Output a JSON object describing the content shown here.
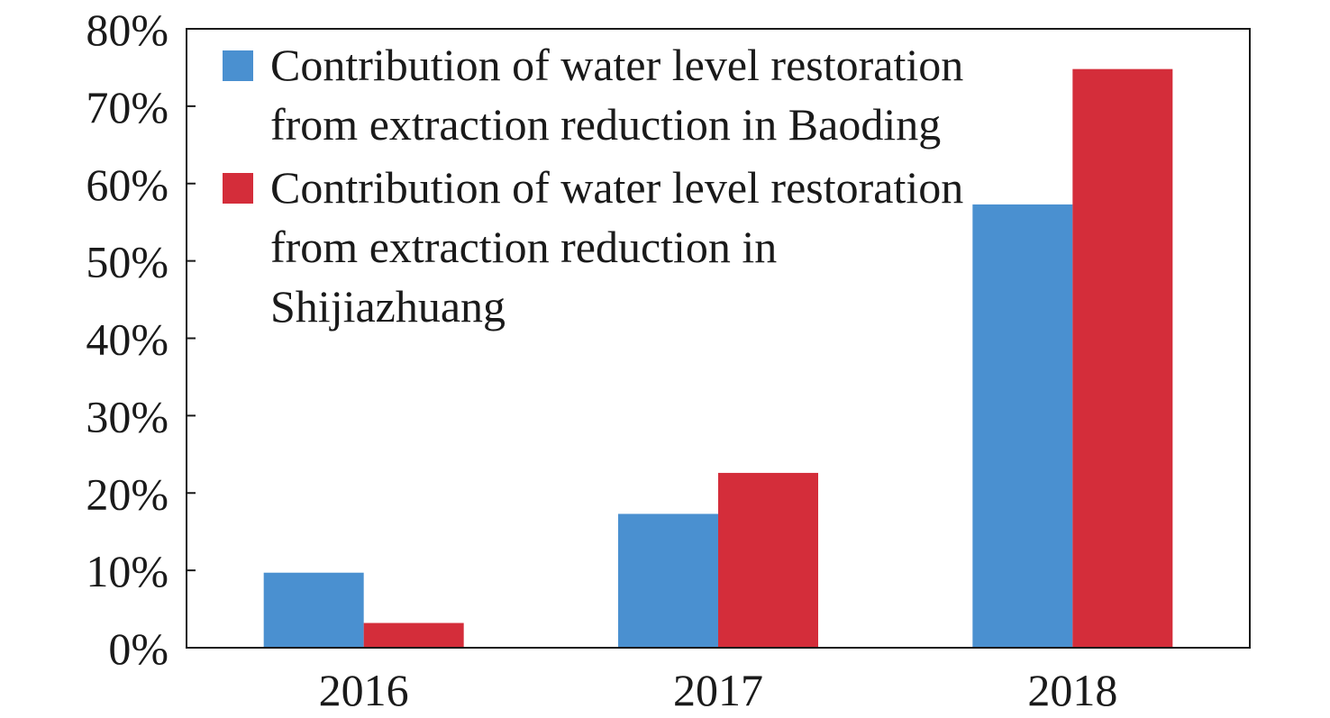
{
  "chart_data": {
    "type": "bar",
    "categories": [
      "2016",
      "2017",
      "2018"
    ],
    "series": [
      {
        "name": "Contribution of water level restoration from extraction reduction in Baoding",
        "legend_lines": [
          "Contribution of water level restoration",
          "from extraction reduction in Baoding"
        ],
        "color": "#4a90d0",
        "values": [
          9.7,
          17.3,
          57.3
        ]
      },
      {
        "name": "Contribution of water level restoration from extraction reduction in Shijiazhuang",
        "legend_lines": [
          "Contribution of water level restoration",
          "from extraction reduction in",
          "Shijiazhuang"
        ],
        "color": "#d42d3a",
        "values": [
          3.2,
          22.6,
          74.8
        ]
      }
    ],
    "ylim": [
      0,
      80
    ],
    "yticks": [
      0,
      10,
      20,
      30,
      40,
      50,
      60,
      70,
      80
    ],
    "ytick_labels": [
      "0%",
      "10%",
      "20%",
      "30%",
      "40%",
      "50%",
      "60%",
      "70%",
      "80%"
    ],
    "title": "",
    "xlabel": "",
    "ylabel": "",
    "grid": false,
    "legend_position": "top-left"
  }
}
